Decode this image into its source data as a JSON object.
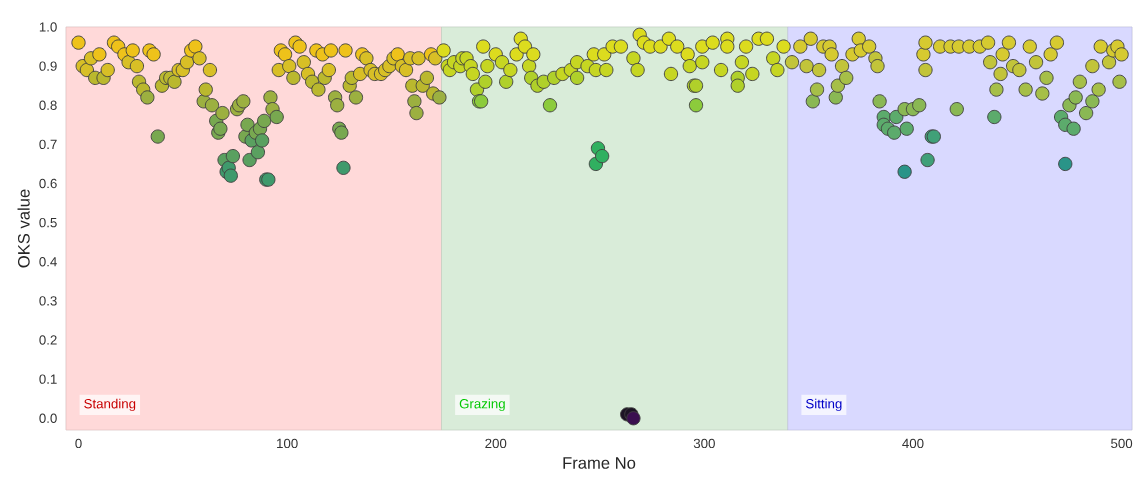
{
  "chart_data": {
    "type": "scatter",
    "xlabel": "Frame No",
    "ylabel": "OKS value",
    "xlim": [
      -6,
      505
    ],
    "ylim": [
      -0.03,
      1.0
    ],
    "xticks": [
      0,
      100,
      200,
      300,
      400,
      500
    ],
    "yticks": [
      {
        "value": 0,
        "label": "0.0"
      },
      0.1,
      0.2,
      0.3,
      0.4,
      0.5,
      0.6,
      0.7,
      0.8,
      0.9,
      {
        "value": 1,
        "label": "1.0"
      }
    ],
    "marker": "circle",
    "bands": [
      {
        "axis": "x",
        "from": -6,
        "to": 174,
        "label": "Standing",
        "color": "#ffd9d9"
      },
      {
        "axis": "x",
        "from": 174,
        "to": 340,
        "label": "Grazing",
        "color": "#d9ecd9"
      },
      {
        "axis": "x",
        "from": 340,
        "to": 505,
        "label": "Sitting",
        "color": "#d9d9ff"
      }
    ],
    "series": [
      {
        "x": [
          0,
          2,
          4,
          6,
          8,
          10,
          12,
          14,
          17,
          19,
          22,
          24,
          26,
          28,
          29,
          31,
          33,
          34,
          36,
          38,
          40,
          42,
          44,
          46,
          48,
          50,
          52,
          54,
          56,
          58,
          60,
          61,
          63,
          64,
          66,
          67,
          68,
          69,
          70,
          71,
          72,
          73,
          74,
          76,
          77,
          79,
          80,
          81,
          82,
          83,
          85,
          86,
          87,
          88,
          89,
          90,
          91,
          92,
          93,
          95,
          96,
          97,
          99,
          101,
          103,
          104,
          106,
          108,
          110,
          112,
          114,
          115,
          117,
          118,
          120,
          121,
          123,
          124,
          125,
          126,
          127,
          128,
          130,
          131,
          133,
          135,
          136,
          138,
          140,
          142,
          145,
          147,
          149,
          151,
          153,
          155,
          157,
          159,
          160,
          161,
          162,
          163,
          165,
          167,
          169,
          170,
          171,
          173
        ],
        "values": [
          0.96,
          0.9,
          0.89,
          0.92,
          0.87,
          0.93,
          0.87,
          0.89,
          0.96,
          0.95,
          0.93,
          0.91,
          0.94,
          0.9,
          0.86,
          0.84,
          0.82,
          0.94,
          0.93,
          0.72,
          0.85,
          0.87,
          0.87,
          0.86,
          0.89,
          0.89,
          0.91,
          0.94,
          0.95,
          0.92,
          0.81,
          0.84,
          0.89,
          0.8,
          0.76,
          0.73,
          0.74,
          0.78,
          0.66,
          0.63,
          0.64,
          0.62,
          0.67,
          0.79,
          0.8,
          0.81,
          0.72,
          0.75,
          0.66,
          0.71,
          0.73,
          0.68,
          0.74,
          0.71,
          0.76,
          0.61,
          0.61,
          0.82,
          0.79,
          0.77,
          0.89,
          0.94,
          0.93,
          0.9,
          0.87,
          0.96,
          0.95,
          0.91,
          0.88,
          0.86,
          0.94,
          0.84,
          0.93,
          0.87,
          0.89,
          0.94,
          0.82,
          0.8,
          0.74,
          0.73,
          0.64,
          0.94,
          0.85,
          0.87,
          0.82,
          0.88,
          0.93,
          0.92,
          0.89,
          0.88,
          0.88,
          0.89,
          0.9,
          0.92,
          0.93,
          0.9,
          0.89,
          0.92,
          0.85,
          0.81,
          0.78,
          0.92,
          0.85,
          0.87,
          0.93,
          0.83,
          0.92,
          0.82
        ],
        "colors": [
          "#eec21a",
          "#d8bf26",
          "#d8bf26",
          "#d8bf26",
          "#bab82e",
          "#eec21a",
          "#bab82e",
          "#d8bf26",
          "#eec21a",
          "#eec21a",
          "#eec21a",
          "#d8bf26",
          "#eec21a",
          "#d8bf26",
          "#bab82e",
          "#bab82e",
          "#9cb040",
          "#eec21a",
          "#eec21a",
          "#78a850",
          "#bab82e",
          "#bab82e",
          "#bab82e",
          "#bab82e",
          "#d8bf26",
          "#d8bf26",
          "#d8bf26",
          "#eec21a",
          "#eec21a",
          "#d8bf26",
          "#9cb040",
          "#bab82e",
          "#d8bf26",
          "#9cb040",
          "#78a850",
          "#78a850",
          "#78a850",
          "#9cb040",
          "#5aa060",
          "#3f9a6c",
          "#3f9a6c",
          "#3f9a6c",
          "#5aa060",
          "#9cb040",
          "#9cb040",
          "#9cb040",
          "#78a850",
          "#78a850",
          "#5aa060",
          "#5aa060",
          "#78a850",
          "#5aa060",
          "#78a850",
          "#5aa060",
          "#78a850",
          "#3f9a6c",
          "#3f9a6c",
          "#9cb040",
          "#9cb040",
          "#78a850",
          "#d8bf26",
          "#eec21a",
          "#eec21a",
          "#d8bf26",
          "#bab82e",
          "#eec21a",
          "#eec21a",
          "#d8bf26",
          "#d8bf26",
          "#bab82e",
          "#eec21a",
          "#bab82e",
          "#eec21a",
          "#bab82e",
          "#d8bf26",
          "#eec21a",
          "#9cb040",
          "#9cb040",
          "#78a850",
          "#78a850",
          "#3f9a6c",
          "#eec21a",
          "#bab82e",
          "#bab82e",
          "#9cb040",
          "#d8bf26",
          "#eec21a",
          "#d8bf26",
          "#d8bf26",
          "#d8bf26",
          "#d8bf26",
          "#d8bf26",
          "#d8bf26",
          "#d8bf26",
          "#eec21a",
          "#d8bf26",
          "#d8bf26",
          "#d8bf26",
          "#bab82e",
          "#9cb040",
          "#9cb040",
          "#d8bf26",
          "#bab82e",
          "#bab82e",
          "#eec21a",
          "#bab82e",
          "#d8bf26",
          "#9cb040"
        ]
      },
      {
        "x": [
          175,
          177,
          178,
          180,
          183,
          184,
          186,
          188,
          189,
          191,
          192,
          193,
          194,
          195,
          196,
          200,
          203,
          205,
          207,
          210,
          212,
          214,
          216,
          217,
          218,
          220,
          223,
          226,
          228,
          232,
          236,
          239,
          239,
          244,
          247,
          248,
          248,
          249,
          251,
          252,
          253,
          256,
          260,
          263,
          265,
          266,
          266,
          268,
          269,
          271,
          274,
          279,
          283,
          284,
          287,
          292,
          293,
          295,
          296,
          296,
          299,
          299,
          304,
          308,
          311,
          311,
          316,
          316,
          318,
          320,
          323,
          326,
          330,
          333,
          335,
          338
        ],
        "values": [
          0.94,
          0.9,
          0.89,
          0.91,
          0.9,
          0.92,
          0.92,
          0.9,
          0.88,
          0.84,
          0.81,
          0.81,
          0.95,
          0.86,
          0.9,
          0.93,
          0.91,
          0.86,
          0.89,
          0.93,
          0.97,
          0.95,
          0.9,
          0.87,
          0.93,
          0.85,
          0.86,
          0.8,
          0.87,
          0.88,
          0.89,
          0.91,
          0.87,
          0.9,
          0.93,
          0.89,
          0.65,
          0.69,
          0.67,
          0.93,
          0.89,
          0.95,
          0.95,
          0.01,
          0.01,
          0.0,
          0.92,
          0.89,
          0.98,
          0.96,
          0.95,
          0.95,
          0.97,
          0.88,
          0.95,
          0.93,
          0.9,
          0.85,
          0.8,
          0.85,
          0.91,
          0.95,
          0.96,
          0.89,
          0.97,
          0.95,
          0.87,
          0.85,
          0.91,
          0.95,
          0.88,
          0.97,
          0.97,
          0.92,
          0.89,
          0.95
        ],
        "colors": [
          "#dcdc1e",
          "#c6d622",
          "#c6d622",
          "#c6d622",
          "#c6d622",
          "#c6d622",
          "#c6d622",
          "#c6d622",
          "#c6d622",
          "#b0d02a",
          "#8ccb3c",
          "#8ccb3c",
          "#dcdc1e",
          "#b0d02a",
          "#c6d622",
          "#dcdc1e",
          "#c6d622",
          "#b0d02a",
          "#c6d622",
          "#dcdc1e",
          "#dcdc1e",
          "#dcdc1e",
          "#c6d622",
          "#b0d02a",
          "#dcdc1e",
          "#b0d02a",
          "#b0d02a",
          "#8ccb3c",
          "#b0d02a",
          "#c6d622",
          "#c6d622",
          "#c6d622",
          "#b0d02a",
          "#c6d622",
          "#dcdc1e",
          "#c6d622",
          "#30b060",
          "#30b060",
          "#30b060",
          "#dcdc1e",
          "#c6d622",
          "#dcdc1e",
          "#dcdc1e",
          "#1c1424",
          "#1c1424",
          "#3b0f50",
          "#c6d622",
          "#c6d622",
          "#dcdc1e",
          "#dcdc1e",
          "#dcdc1e",
          "#dcdc1e",
          "#dcdc1e",
          "#c6d622",
          "#dcdc1e",
          "#dcdc1e",
          "#c6d622",
          "#b0d02a",
          "#8ccb3c",
          "#b0d02a",
          "#c6d622",
          "#dcdc1e",
          "#dcdc1e",
          "#c6d622",
          "#dcdc1e",
          "#dcdc1e",
          "#b0d02a",
          "#b0d02a",
          "#c6d622",
          "#dcdc1e",
          "#c6d622",
          "#dcdc1e",
          "#dcdc1e",
          "#c6d622",
          "#c6d622",
          "#dcdc1e"
        ]
      },
      {
        "x": [
          342,
          346,
          349,
          351,
          352,
          354,
          355,
          357,
          360,
          361,
          363,
          364,
          366,
          368,
          371,
          374,
          375,
          379,
          382,
          383,
          384,
          386,
          386,
          388,
          391,
          392,
          396,
          397,
          396,
          400,
          403,
          405,
          406,
          406,
          407,
          409,
          410,
          413,
          418,
          421,
          422,
          427,
          432,
          436,
          437,
          439,
          440,
          442,
          443,
          446,
          448,
          451,
          454,
          456,
          459,
          462,
          464,
          466,
          469,
          471,
          473,
          473,
          477,
          475,
          478,
          480,
          483,
          486,
          486,
          489,
          490,
          494,
          496,
          498,
          499,
          500
        ],
        "values": [
          0.91,
          0.95,
          0.9,
          0.97,
          0.81,
          0.84,
          0.89,
          0.95,
          0.95,
          0.93,
          0.82,
          0.85,
          0.9,
          0.87,
          0.93,
          0.97,
          0.94,
          0.95,
          0.92,
          0.9,
          0.81,
          0.77,
          0.75,
          0.74,
          0.73,
          0.77,
          0.79,
          0.74,
          0.63,
          0.79,
          0.8,
          0.93,
          0.89,
          0.96,
          0.66,
          0.72,
          0.72,
          0.95,
          0.95,
          0.79,
          0.95,
          0.95,
          0.95,
          0.96,
          0.91,
          0.77,
          0.84,
          0.88,
          0.93,
          0.96,
          0.9,
          0.89,
          0.84,
          0.95,
          0.91,
          0.83,
          0.87,
          0.93,
          0.96,
          0.77,
          0.75,
          0.65,
          0.74,
          0.8,
          0.82,
          0.86,
          0.78,
          0.81,
          0.9,
          0.84,
          0.95,
          0.91,
          0.94,
          0.95,
          0.86,
          0.93
        ],
        "colors": [
          "#c2c43a",
          "#d6ca30",
          "#c2c43a",
          "#d6ca30",
          "#8ab854",
          "#a6bf48",
          "#c2c43a",
          "#d6ca30",
          "#d6ca30",
          "#d6ca30",
          "#8ab854",
          "#a6bf48",
          "#c2c43a",
          "#a6bf48",
          "#d6ca30",
          "#d6ca30",
          "#d6ca30",
          "#d6ca30",
          "#c2c43a",
          "#c2c43a",
          "#8ab854",
          "#5cab6c",
          "#5cab6c",
          "#5cab6c",
          "#5cab6c",
          "#5cab6c",
          "#8ab854",
          "#5cab6c",
          "#2a9488",
          "#8ab854",
          "#8ab854",
          "#d6ca30",
          "#c2c43a",
          "#d6ca30",
          "#40a078",
          "#40a078",
          "#40a078",
          "#d6ca30",
          "#d6ca30",
          "#8ab854",
          "#d6ca30",
          "#d6ca30",
          "#d6ca30",
          "#d6ca30",
          "#c2c43a",
          "#5cab6c",
          "#a6bf48",
          "#c2c43a",
          "#d6ca30",
          "#d6ca30",
          "#c2c43a",
          "#c2c43a",
          "#a6bf48",
          "#d6ca30",
          "#c2c43a",
          "#a6bf48",
          "#a6bf48",
          "#d6ca30",
          "#d6ca30",
          "#5cab6c",
          "#5cab6c",
          "#2a9488",
          "#5cab6c",
          "#8ab854",
          "#8ab854",
          "#a6bf48",
          "#8ab854",
          "#8ab854",
          "#c2c43a",
          "#a6bf48",
          "#d6ca30",
          "#c2c43a",
          "#d6ca30",
          "#d6ca30",
          "#a6bf48",
          "#d6ca30"
        ]
      }
    ]
  }
}
